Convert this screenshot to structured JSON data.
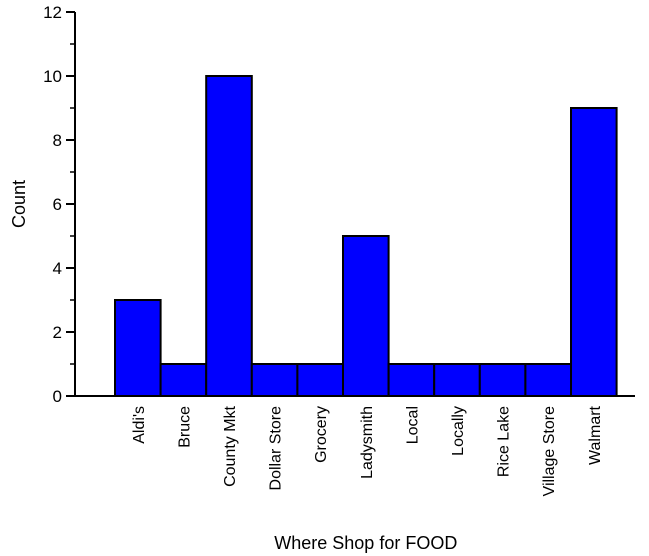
{
  "chart_data": {
    "type": "bar",
    "title": "",
    "xlabel": "Where Shop for FOOD",
    "ylabel": "Count",
    "ylim": [
      0,
      12
    ],
    "yticks": [
      0,
      2,
      4,
      6,
      8,
      10,
      12
    ],
    "grid": false,
    "categories": [
      "Aldi's",
      "Bruce",
      "County Mkt",
      "Dollar Store",
      "Grocery",
      "Ladysmith",
      "Local",
      "Locally",
      "Rice Lake",
      "Village Store",
      "Walmart"
    ],
    "values": [
      3,
      1,
      10,
      1,
      1,
      5,
      1,
      1,
      1,
      1,
      9
    ],
    "colors": {
      "bar_fill": "#0000FF",
      "bar_stroke": "#000000"
    }
  }
}
